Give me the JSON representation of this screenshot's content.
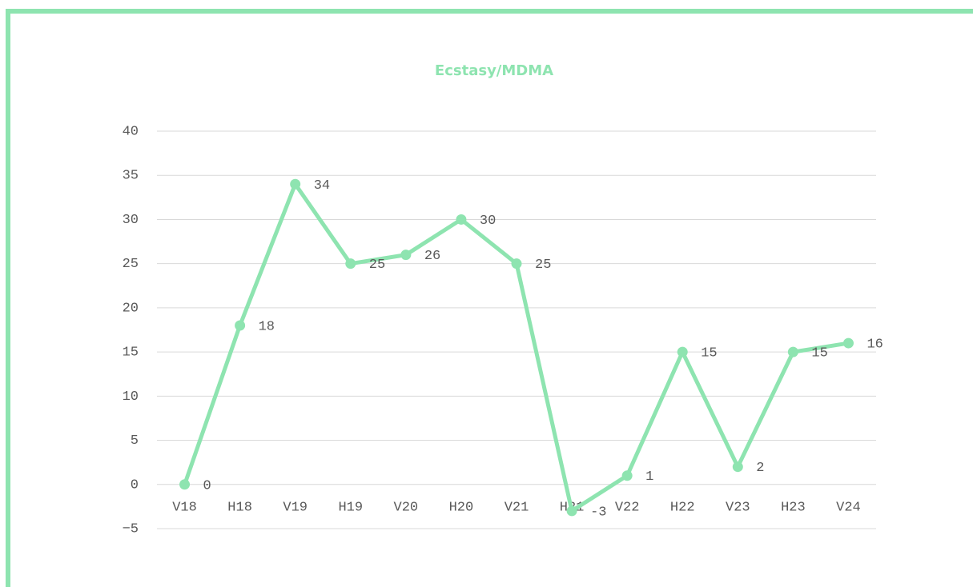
{
  "chart_data": {
    "type": "line",
    "title": "Ecstasy/MDMA",
    "categories": [
      "V18",
      "H18",
      "V19",
      "H19",
      "V20",
      "H20",
      "V21",
      "H21",
      "V22",
      "H22",
      "V23",
      "H23",
      "V24"
    ],
    "series": [
      {
        "name": "Ecstasy/MDMA",
        "color": "#8ee4b0",
        "values": [
          0,
          18,
          34,
          25,
          26,
          30,
          25,
          -3,
          1,
          15,
          2,
          15,
          16
        ]
      }
    ],
    "ylim": [
      -5,
      40
    ],
    "yticks": [
      {
        "value": -5,
        "label": "−5"
      },
      0,
      5,
      10,
      15,
      20,
      25,
      30,
      35,
      40
    ],
    "grid": true
  }
}
